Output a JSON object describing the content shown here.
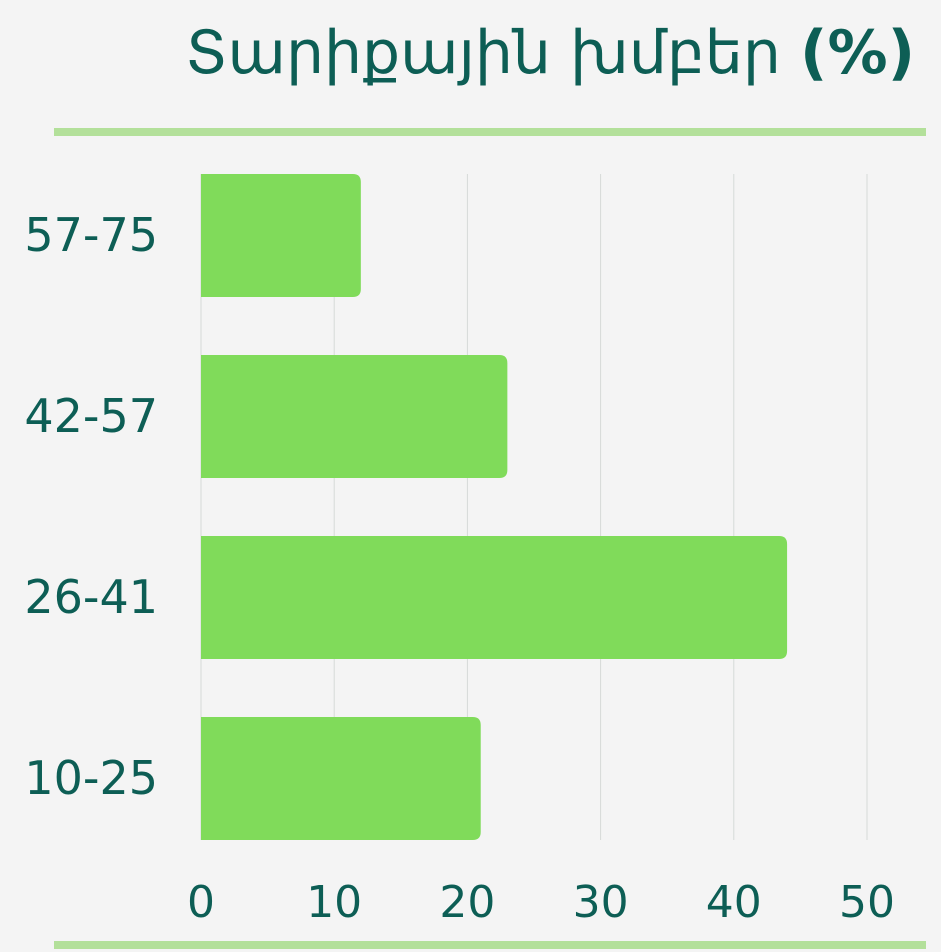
{
  "chart_data": {
    "type": "bar",
    "orientation": "horizontal",
    "title": "Տարիքային խմբեր",
    "title_unit": "(%)",
    "categories": [
      "57-75",
      "42-57",
      "26-41",
      "10-25"
    ],
    "values": [
      12,
      23,
      44,
      21
    ],
    "color": "#80db5a",
    "xlim": [
      0,
      50
    ],
    "xticks": [
      0,
      10,
      20,
      30,
      40,
      50
    ],
    "grid": true
  }
}
